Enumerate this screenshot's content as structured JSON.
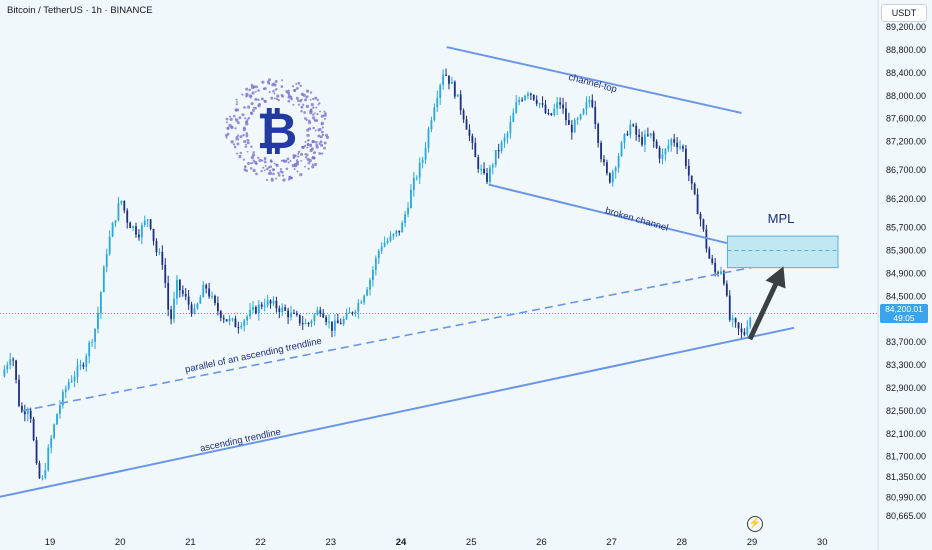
{
  "header": {
    "title": "Bitcoin / TetherUS · 1h · BINANCE",
    "currency_button": "USDT"
  },
  "current_price": {
    "value": "84,200.01",
    "countdown": "49:05"
  },
  "chart_data": {
    "type": "candlestick",
    "ylim": [
      80500,
      89300
    ],
    "x_tick_labels": [
      "19",
      "20",
      "21",
      "22",
      "23",
      "24",
      "25",
      "26",
      "27",
      "28",
      "29",
      "30"
    ],
    "x_tick_bold": [
      "24"
    ],
    "y_tick_labels": [
      "89,200.00",
      "88,800.00",
      "88,400.00",
      "88,000.00",
      "87,600.00",
      "87,200.00",
      "86,700.00",
      "86,200.00",
      "85,700.00",
      "85,300.00",
      "84,900.00",
      "84,500.00",
      "84,200.00",
      "83,700.00",
      "83,300.00",
      "82,900.00",
      "82,500.00",
      "82,100.00",
      "81,700.00",
      "81,350.00",
      "80,990.00",
      "80,665.00"
    ],
    "price_path": [
      [
        18.35,
        83100
      ],
      [
        18.5,
        83550
      ],
      [
        18.62,
        82450
      ],
      [
        18.75,
        82600
      ],
      [
        18.85,
        81500
      ],
      [
        18.92,
        81200
      ],
      [
        19.0,
        81700
      ],
      [
        19.15,
        82500
      ],
      [
        19.3,
        83000
      ],
      [
        19.5,
        83300
      ],
      [
        19.7,
        84000
      ],
      [
        19.85,
        85300
      ],
      [
        19.95,
        85800
      ],
      [
        20.05,
        86200
      ],
      [
        20.15,
        85800
      ],
      [
        20.3,
        85600
      ],
      [
        20.45,
        85900
      ],
      [
        20.55,
        85300
      ],
      [
        20.65,
        85100
      ],
      [
        20.75,
        84000
      ],
      [
        20.85,
        84700
      ],
      [
        20.95,
        84500
      ],
      [
        21.1,
        84200
      ],
      [
        21.25,
        84700
      ],
      [
        21.4,
        84300
      ],
      [
        21.55,
        84100
      ],
      [
        21.7,
        84000
      ],
      [
        21.9,
        84200
      ],
      [
        22.1,
        84400
      ],
      [
        22.3,
        84300
      ],
      [
        22.5,
        84150
      ],
      [
        22.7,
        84000
      ],
      [
        22.9,
        84300
      ],
      [
        23.05,
        83950
      ],
      [
        23.25,
        84100
      ],
      [
        23.45,
        84400
      ],
      [
        23.6,
        84800
      ],
      [
        23.75,
        85400
      ],
      [
        23.9,
        85500
      ],
      [
        24.05,
        85700
      ],
      [
        24.2,
        86400
      ],
      [
        24.35,
        86900
      ],
      [
        24.5,
        87800
      ],
      [
        24.65,
        88450
      ],
      [
        24.8,
        88100
      ],
      [
        24.95,
        87600
      ],
      [
        25.1,
        86900
      ],
      [
        25.25,
        86500
      ],
      [
        25.4,
        87000
      ],
      [
        25.55,
        87300
      ],
      [
        25.7,
        87900
      ],
      [
        25.85,
        88100
      ],
      [
        26.0,
        87900
      ],
      [
        26.15,
        87600
      ],
      [
        26.3,
        87900
      ],
      [
        26.45,
        87400
      ],
      [
        26.6,
        87600
      ],
      [
        26.75,
        88000
      ],
      [
        26.9,
        86900
      ],
      [
        27.0,
        86500
      ],
      [
        27.15,
        87000
      ],
      [
        27.3,
        87500
      ],
      [
        27.45,
        87200
      ],
      [
        27.6,
        87300
      ],
      [
        27.75,
        86900
      ],
      [
        27.9,
        87250
      ],
      [
        28.05,
        87100
      ],
      [
        28.2,
        86300
      ],
      [
        28.32,
        85800
      ],
      [
        28.42,
        85200
      ],
      [
        28.52,
        84900
      ],
      [
        28.62,
        85000
      ],
      [
        28.72,
        84100
      ],
      [
        28.82,
        83950
      ],
      [
        28.92,
        83800
      ],
      [
        29.0,
        84150
      ]
    ],
    "annotations": [
      "channel-top",
      "broken channel",
      "MPL",
      "parallel of an ascending trendline",
      "ascending trendline"
    ],
    "colors": {
      "up": "#29a8df",
      "down": "#1e2f82",
      "trendline": "#6a96e6",
      "zone_fill": "#bfe8f3",
      "zone_border": "#5aaedb",
      "arrow": "#3c3f44",
      "annotation": "#1d2c7a",
      "background": "#f0f8fc"
    }
  }
}
